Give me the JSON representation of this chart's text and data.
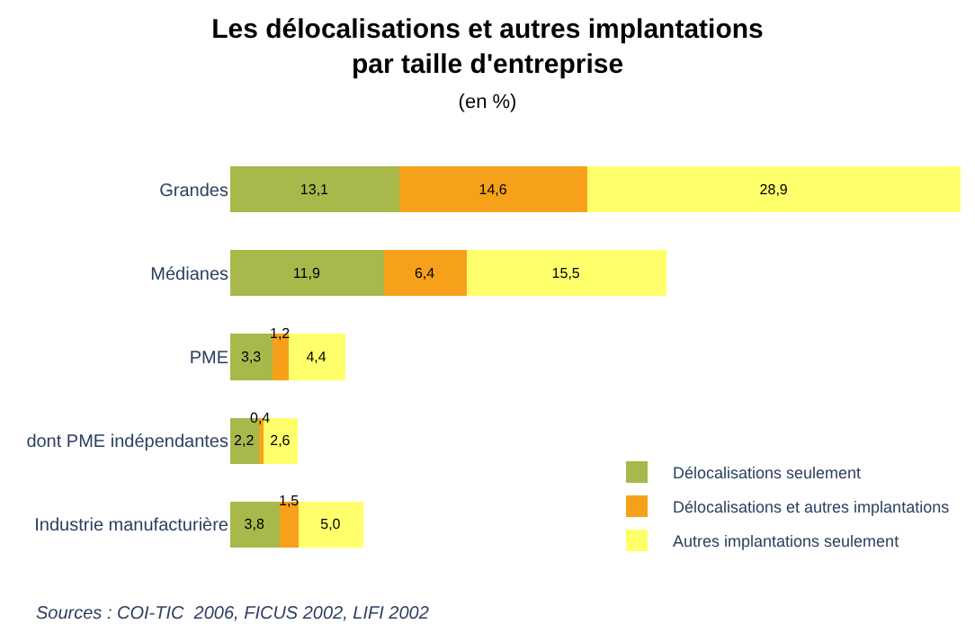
{
  "chart_data": {
    "type": "bar",
    "orientation": "horizontal",
    "stacked": true,
    "title": "Les délocalisations et autres implantations par taille d'entreprise",
    "subtitle": "(en %)",
    "categories": [
      "Grandes",
      "Médianes",
      "PME",
      "dont PME indépendantes",
      "Industrie manufacturière"
    ],
    "series": [
      {
        "name": "Délocalisations seulement",
        "color": "#a8b84b",
        "values": [
          13.1,
          11.9,
          3.3,
          2.2,
          3.8
        ],
        "value_labels": [
          "13,1",
          "11,9",
          "3,3",
          "2,2",
          "3,8"
        ]
      },
      {
        "name": "Délocalisations et autres implantations",
        "color": "#f7a11a",
        "values": [
          14.6,
          6.4,
          1.2,
          0.4,
          1.5
        ],
        "value_labels": [
          "14,6",
          "6,4",
          "1,2",
          "0,4",
          "1,5"
        ]
      },
      {
        "name": "Autres implantations seulement",
        "color": "#ffff6b",
        "values": [
          28.9,
          15.5,
          4.4,
          2.6,
          5.0
        ],
        "value_labels": [
          "28,9",
          "15,5",
          "4,4",
          "2,6",
          "5,0"
        ]
      }
    ],
    "legend": "bottom right",
    "annotations": [
      "Sources : COI-TIC  2006, FICUS 2002, LIFI 2002"
    ]
  }
}
